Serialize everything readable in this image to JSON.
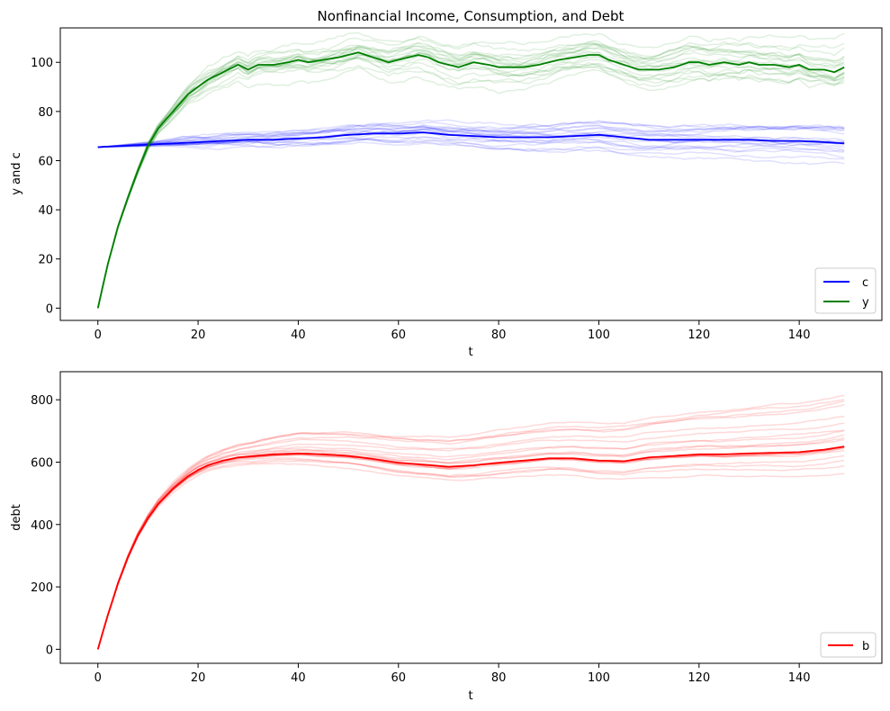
{
  "chart_data": [
    {
      "type": "line",
      "title": "Nonfinancial Income, Consumption, and Debt",
      "xlabel": "t",
      "ylabel": "y and c",
      "xlim": [
        -7.5,
        156.5
      ],
      "ylim": [
        -5,
        114
      ],
      "xticks": [
        0,
        20,
        40,
        60,
        80,
        100,
        120,
        140
      ],
      "yticks": [
        0,
        20,
        40,
        60,
        80,
        100
      ],
      "legend_position": "lower right",
      "series": [
        {
          "name": "c",
          "color": "#0000ff",
          "x": [
            0,
            5,
            10,
            15,
            20,
            25,
            30,
            35,
            40,
            45,
            50,
            55,
            60,
            65,
            70,
            75,
            80,
            85,
            90,
            95,
            100,
            105,
            110,
            115,
            120,
            125,
            130,
            135,
            140,
            145,
            149
          ],
          "values": [
            65.5,
            66,
            66.5,
            67,
            67.5,
            68,
            68.5,
            68.5,
            69,
            69.5,
            70.5,
            71,
            71,
            71.5,
            70.5,
            70,
            69.5,
            69.5,
            69.5,
            70,
            70.5,
            69.5,
            68.5,
            68.5,
            68.5,
            68.5,
            68.5,
            68,
            68,
            67.5,
            67
          ],
          "background_paths": 20
        },
        {
          "name": "y",
          "color": "#008000",
          "x": [
            0,
            2,
            4,
            6,
            8,
            10,
            12,
            15,
            18,
            20,
            22,
            25,
            28,
            30,
            32,
            35,
            38,
            40,
            42,
            45,
            48,
            50,
            52,
            55,
            58,
            60,
            62,
            64,
            66,
            68,
            70,
            72,
            75,
            78,
            80,
            82,
            85,
            88,
            90,
            92,
            95,
            98,
            100,
            102,
            105,
            108,
            110,
            112,
            115,
            118,
            120,
            122,
            125,
            128,
            130,
            132,
            135,
            138,
            140,
            142,
            145,
            147,
            149
          ],
          "values": [
            0,
            18,
            33,
            45,
            56,
            66,
            73,
            80,
            87,
            90,
            93,
            96,
            99,
            97,
            99,
            99,
            100,
            101,
            100,
            101,
            102,
            103,
            104,
            102,
            100,
            101,
            102,
            103,
            102,
            100,
            99,
            98,
            100,
            99,
            98,
            98,
            98,
            99,
            100,
            101,
            102,
            103,
            103,
            101,
            99,
            97,
            97,
            97,
            98,
            100,
            100,
            99,
            100,
            99,
            100,
            99,
            99,
            98,
            99,
            97,
            97,
            96,
            98
          ],
          "background_paths": 20
        },
        {
          "name": "b",
          "color": "#ff0000",
          "x": [
            0,
            2,
            4,
            6,
            8,
            10,
            12,
            15,
            18,
            20,
            22,
            25,
            28,
            30,
            35,
            40,
            45,
            50,
            55,
            60,
            65,
            70,
            75,
            80,
            85,
            90,
            95,
            100,
            105,
            110,
            115,
            120,
            125,
            130,
            135,
            140,
            145,
            149
          ],
          "values": [
            0,
            110,
            210,
            295,
            365,
            420,
            465,
            515,
            555,
            575,
            590,
            605,
            615,
            618,
            625,
            628,
            625,
            620,
            610,
            598,
            592,
            585,
            590,
            598,
            605,
            612,
            612,
            605,
            603,
            615,
            620,
            625,
            625,
            628,
            630,
            632,
            640,
            650
          ],
          "background_paths": 20
        }
      ]
    },
    {
      "type": "line",
      "title": "",
      "xlabel": "t",
      "ylabel": "debt",
      "xlim": [
        -7.5,
        156.5
      ],
      "ylim": [
        -45,
        890
      ],
      "xticks": [
        0,
        20,
        40,
        60,
        80,
        100,
        120,
        140
      ],
      "yticks": [
        0,
        200,
        400,
        600,
        800
      ],
      "legend_position": "lower right",
      "series_names": [
        "b"
      ]
    }
  ]
}
